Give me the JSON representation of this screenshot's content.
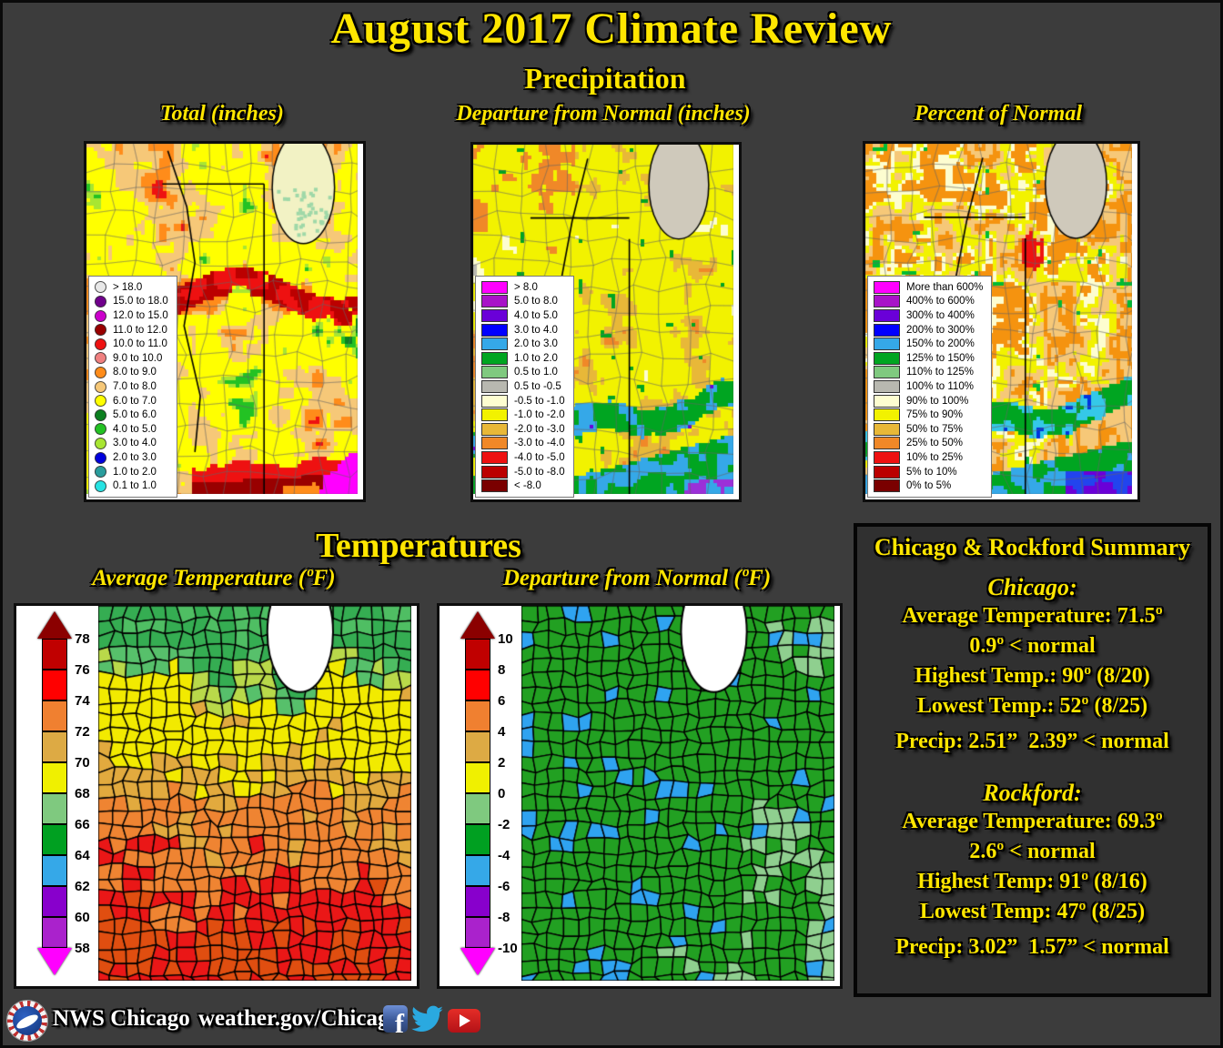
{
  "page": {
    "title": "August 2017 Climate Review",
    "background": "#3c3c3c",
    "accent": "#ffe600"
  },
  "precipitation": {
    "section_title": "Precipitation",
    "maps": [
      {
        "title": "Total (inches)",
        "marker": "circle",
        "legend": [
          {
            "label": "> 18.0",
            "color": "#e8e8e8"
          },
          {
            "label": "15.0 to 18.0",
            "color": "#70008c"
          },
          {
            "label": "12.0 to 15.0",
            "color": "#cc00cc"
          },
          {
            "label": "11.0 to 12.0",
            "color": "#990000"
          },
          {
            "label": "10.0 to 11.0",
            "color": "#ee1111"
          },
          {
            "label": "9.0 to 10.0",
            "color": "#f08080"
          },
          {
            "label": "8.0 to 9.0",
            "color": "#ff8c1a"
          },
          {
            "label": "7.0 to 8.0",
            "color": "#f6c878"
          },
          {
            "label": "6.0 to 7.0",
            "color": "#ffff00"
          },
          {
            "label": "5.0 to 6.0",
            "color": "#0c8020"
          },
          {
            "label": "4.0 to 5.0",
            "color": "#23c223"
          },
          {
            "label": "3.0 to 4.0",
            "color": "#a8e632"
          },
          {
            "label": "2.0 to 3.0",
            "color": "#0000dd"
          },
          {
            "label": "1.0 to 2.0",
            "color": "#2a9d9d"
          },
          {
            "label": "0.1 to 1.0",
            "color": "#27e3e3"
          }
        ]
      },
      {
        "title": "Departure from Normal (inches)",
        "marker": "rect",
        "legend": [
          {
            "label": "> 8.0",
            "color": "#ff00ff"
          },
          {
            "label": "5.0 to 8.0",
            "color": "#a814c8"
          },
          {
            "label": "4.0 to 5.0",
            "color": "#6a00d8"
          },
          {
            "label": "3.0 to 4.0",
            "color": "#0000ff"
          },
          {
            "label": "2.0 to 3.0",
            "color": "#35a8e8"
          },
          {
            "label": "1.0 to 2.0",
            "color": "#00a521"
          },
          {
            "label": "0.5 to 1.0",
            "color": "#7fc97f"
          },
          {
            "label": "0.5 to -0.5",
            "color": "#b8b8b0"
          },
          {
            "label": "-0.5 to -1.0",
            "color": "#fdfdd0"
          },
          {
            "label": "-1.0 to -2.0",
            "color": "#f2f200"
          },
          {
            "label": "-2.0 to -3.0",
            "color": "#e8b838"
          },
          {
            "label": "-3.0 to -4.0",
            "color": "#f08828"
          },
          {
            "label": "-4.0 to -5.0",
            "color": "#ee1111"
          },
          {
            "label": "-5.0 to -8.0",
            "color": "#bb0000"
          },
          {
            "label": "< -8.0",
            "color": "#7a0000"
          }
        ]
      },
      {
        "title": "Percent of Normal",
        "marker": "rect",
        "legend": [
          {
            "label": "More than 600%",
            "color": "#ff00ff"
          },
          {
            "label": "400% to 600%",
            "color": "#a814c8"
          },
          {
            "label": "300% to 400%",
            "color": "#6a00d8"
          },
          {
            "label": "200% to 300%",
            "color": "#0000ff"
          },
          {
            "label": "150% to 200%",
            "color": "#35a8e8"
          },
          {
            "label": "125% to 150%",
            "color": "#00a521"
          },
          {
            "label": "110% to 125%",
            "color": "#7fc97f"
          },
          {
            "label": "100% to 110%",
            "color": "#b8b8b0"
          },
          {
            "label": "90% to 100%",
            "color": "#fdfdd0"
          },
          {
            "label": "75% to 90%",
            "color": "#f2f200"
          },
          {
            "label": "50% to 75%",
            "color": "#e8b838"
          },
          {
            "label": "25% to 50%",
            "color": "#f08828"
          },
          {
            "label": "10% to 25%",
            "color": "#ee1111"
          },
          {
            "label": "5% to 10%",
            "color": "#bb0000"
          },
          {
            "label": "0% to 5%",
            "color": "#7a0000"
          }
        ]
      }
    ]
  },
  "temperatures": {
    "section_title": "Temperatures",
    "maps": [
      {
        "title": "Average Temperature (ºF)",
        "colorbar": {
          "labels": [
            "78",
            "76",
            "74",
            "72",
            "70",
            "68",
            "66",
            "64",
            "62",
            "60",
            "58"
          ],
          "colors": [
            "#8b0000",
            "#c00000",
            "#ff0000",
            "#f08030",
            "#ddaa44",
            "#f0f000",
            "#7fc97f",
            "#00a021",
            "#35a8e8",
            "#8800cc",
            "#aa22cc",
            "#ff00ff"
          ]
        }
      },
      {
        "title": "Departure from Normal (ºF)",
        "colorbar": {
          "labels": [
            "10",
            "8",
            "6",
            "4",
            "2",
            "0",
            "-2",
            "-4",
            "-6",
            "-8",
            "-10"
          ],
          "colors": [
            "#8b0000",
            "#c00000",
            "#ff0000",
            "#f08030",
            "#ddaa44",
            "#f0f000",
            "#7fc97f",
            "#00a021",
            "#35a8e8",
            "#8800cc",
            "#aa22cc",
            "#ff00ff"
          ]
        }
      }
    ]
  },
  "summary": {
    "title": "Chicago & Rockford Summary",
    "sections": [
      {
        "heading": "Chicago:",
        "lines": [
          "Average Temperature: 71.5º",
          "0.9º < normal",
          "Highest Temp.: 90º (8/20)",
          "Lowest Temp.: 52º (8/25)"
        ],
        "precip_line": "Precip: 2.51”  2.39” < normal"
      },
      {
        "heading": "Rockford:",
        "lines": [
          "Average Temperature: 69.3º",
          "2.6º < normal",
          "Highest Temp: 91º (8/16)",
          "Lowest Temp: 47º (8/25)"
        ],
        "precip_line": "Precip: 3.02”  1.57” < normal"
      }
    ]
  },
  "footer": {
    "org_label": "NWS Chicago",
    "url_label": "weather.gov/Chicago",
    "social": [
      {
        "name": "facebook"
      },
      {
        "name": "twitter"
      },
      {
        "name": "youtube"
      }
    ]
  }
}
